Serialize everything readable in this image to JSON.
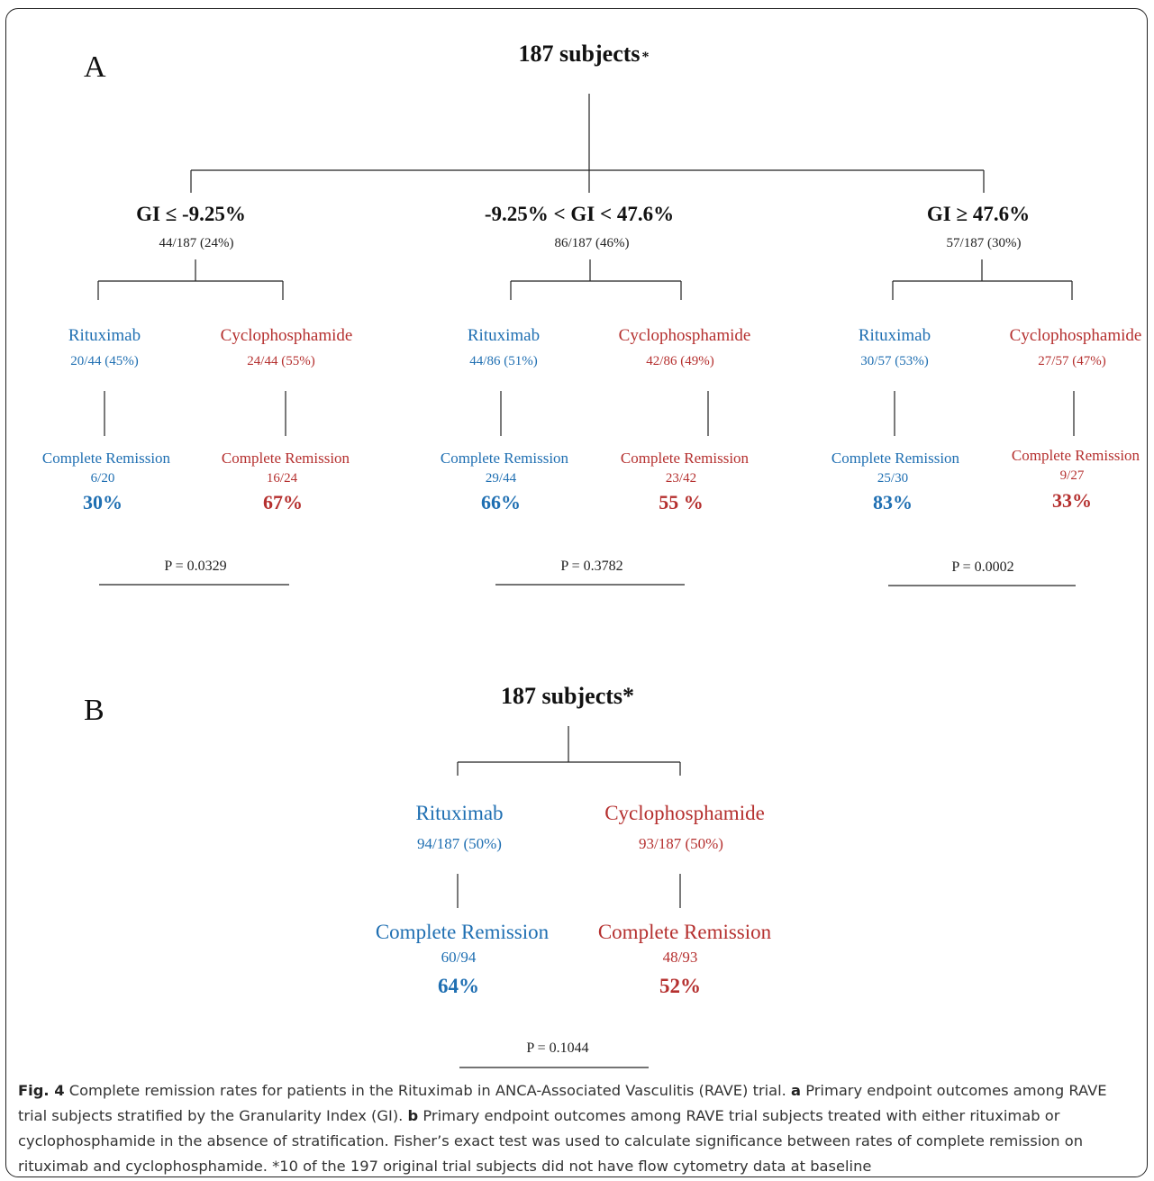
{
  "panel_a": {
    "label": "A",
    "root_text": "187 subjects",
    "root_star": "*",
    "groups": [
      {
        "gi": "GI ≤ -9.25%",
        "fraction": "44/187 (24%)",
        "rituximab": {
          "name": "Rituximab",
          "fraction": "20/44 (45%)",
          "cr_label": "Complete Remission",
          "cr_fraction": "6/20",
          "cr_pct": "30%"
        },
        "cyclophosphamide": {
          "name": "Cyclophosphamide",
          "fraction": "24/44 (55%)",
          "cr_label": "Complete Remission",
          "cr_fraction": "16/24",
          "cr_pct": "67%"
        },
        "p_value": "P = 0.0329"
      },
      {
        "gi": "-9.25% < GI < 47.6%",
        "fraction": "86/187 (46%)",
        "rituximab": {
          "name": "Rituximab",
          "fraction": "44/86 (51%)",
          "cr_label": "Complete Remission",
          "cr_fraction": "29/44",
          "cr_pct": "66%"
        },
        "cyclophosphamide": {
          "name": "Cyclophosphamide",
          "fraction": "42/86 (49%)",
          "cr_label": "Complete Remission",
          "cr_fraction": "23/42",
          "cr_pct": "55 %"
        },
        "p_value": "P = 0.3782"
      },
      {
        "gi": "GI ≥ 47.6%",
        "fraction": "57/187 (30%)",
        "rituximab": {
          "name": "Rituximab",
          "fraction": "30/57 (53%)",
          "cr_label": "Complete Remission",
          "cr_fraction": "25/30",
          "cr_pct": "83%"
        },
        "cyclophosphamide": {
          "name": "Cyclophosphamide",
          "fraction": "27/57 (47%)",
          "cr_label": "Complete Remission",
          "cr_fraction": "9/27",
          "cr_pct": "33%"
        },
        "p_value": "P = 0.0002"
      }
    ]
  },
  "panel_b": {
    "label": "B",
    "root_text": "187 subjects*",
    "rituximab": {
      "name": "Rituximab",
      "fraction": "94/187 (50%)",
      "cr_label": "Complete Remission",
      "cr_fraction": "60/94",
      "cr_pct": "64%"
    },
    "cyclophosphamide": {
      "name": "Cyclophosphamide",
      "fraction": "93/187 (50%)",
      "cr_label": "Complete Remission",
      "cr_fraction": "48/93",
      "cr_pct": "52%"
    },
    "p_value": "P = 0.1044"
  },
  "caption": {
    "fig_label": "Fig. 4",
    "text_1": " Complete remission rates for patients in the Rituximab in ANCA-Associated Vasculitis (RAVE) trial. ",
    "label_a": "a",
    "text_2": " Primary endpoint outcomes among RAVE trial subjects stratified by the Granularity Index (GI). ",
    "label_b": "b",
    "text_3": " Primary endpoint outcomes among RAVE trial subjects treated with either rituximab or cyclophosphamide in the absence of stratification. Fisher’s exact test was used to calculate significance between rates of complete remission on rituximab and cyclophosphamide. *10 of the 197 original trial subjects did not have flow cytometry data at baseline"
  },
  "colors": {
    "rituximab": "#1f6fb2",
    "cyclophosphamide": "#b5302f",
    "text": "#222222"
  }
}
